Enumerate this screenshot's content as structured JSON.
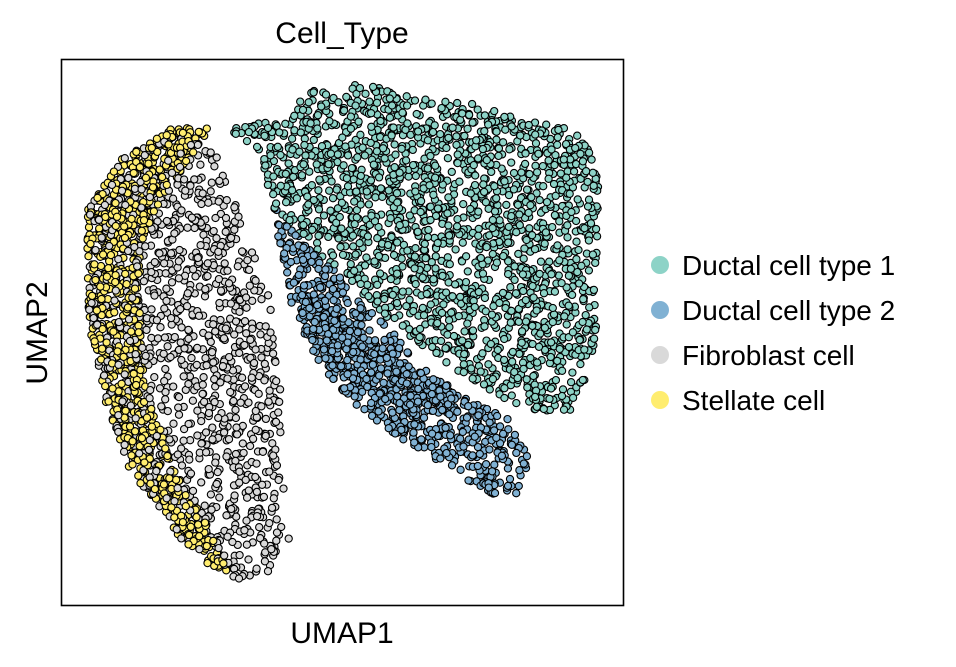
{
  "chart_data": {
    "type": "scatter",
    "title": "Cell_Type",
    "xlabel": "UMAP1",
    "ylabel": "UMAP2",
    "ticks": false,
    "grid": false,
    "legend_placement": "right",
    "series": [
      {
        "name": "Ductal cell type 1",
        "color": "#8dd3c7"
      },
      {
        "name": "Ductal cell type 2",
        "color": "#80b1d3"
      },
      {
        "name": "Fibroblast cell",
        "color": "#d9d9d9"
      },
      {
        "name": "Stellate cell",
        "color": "#ffed6f"
      }
    ]
  }
}
